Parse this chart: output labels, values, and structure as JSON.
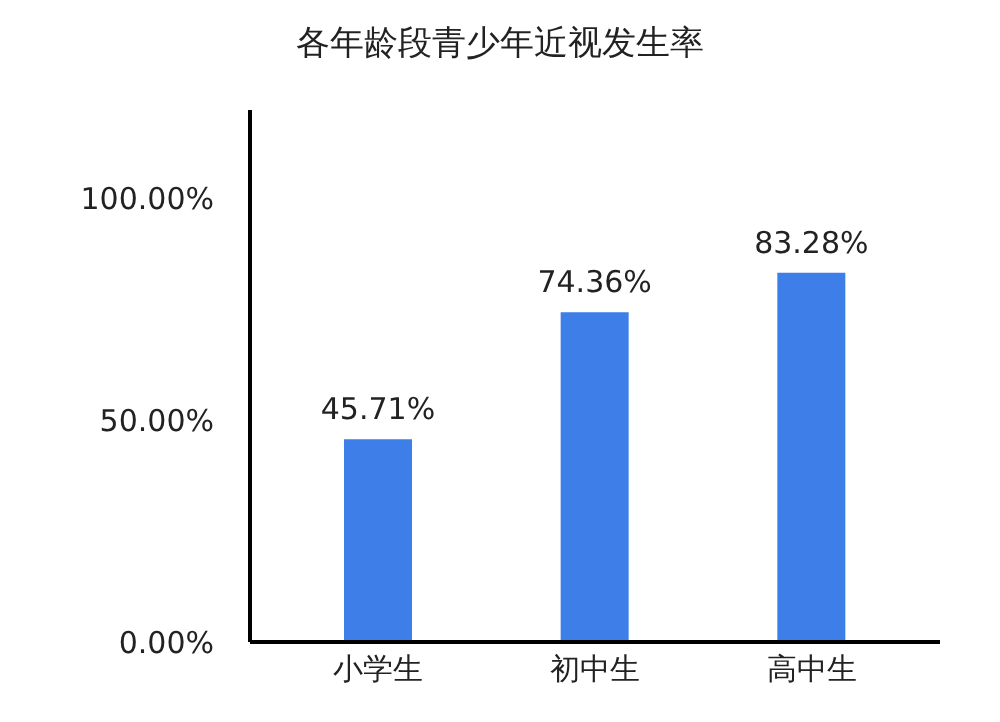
{
  "chart_data": {
    "type": "bar",
    "title": "各年龄段青少年近视发生率",
    "categories": [
      "小学生",
      "初中生",
      "高中生"
    ],
    "values": [
      45.71,
      74.36,
      83.28
    ],
    "value_labels": [
      "45.71%",
      "74.36%",
      "83.28%"
    ],
    "color": "#3d7ee8",
    "ylim": [
      0,
      120
    ],
    "yticks": [
      {
        "value": 0,
        "label": "0.00%"
      },
      {
        "value": 50,
        "label": "50.00%"
      },
      {
        "value": 100,
        "label": "100.00%"
      }
    ],
    "grid": false
  }
}
